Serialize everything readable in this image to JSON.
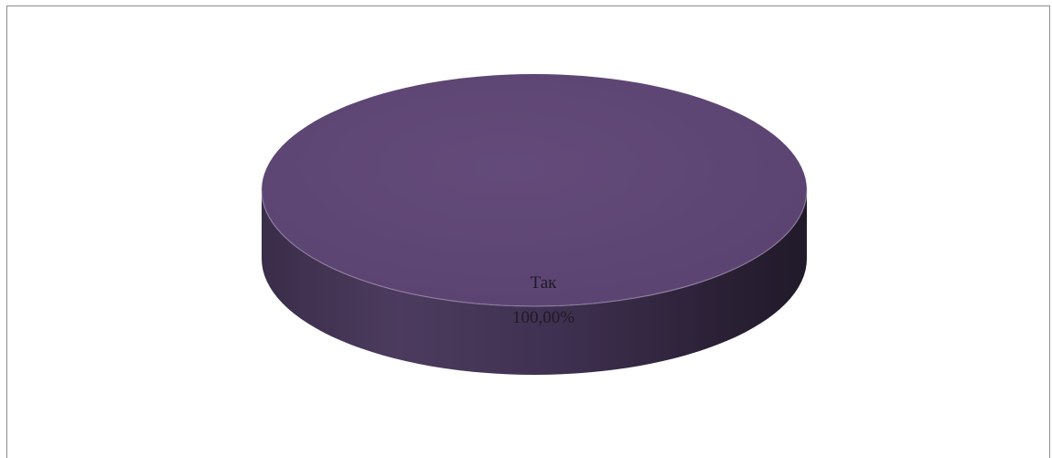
{
  "chart_data": {
    "type": "pie",
    "style": "3d",
    "categories": [
      "Так"
    ],
    "values": [
      100.0
    ],
    "data_labels": [
      {
        "category": "Так",
        "value_label": "100,00%"
      }
    ],
    "colors": {
      "slice_top": "#5f4775",
      "slice_side_dark": "#2b2136",
      "slice_side_mid": "#4a3a5a",
      "frame_border": "#8c8c8c"
    },
    "legend": "none",
    "grid": false
  }
}
